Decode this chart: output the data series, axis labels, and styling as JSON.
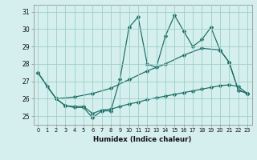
{
  "xlabel": "Humidex (Indice chaleur)",
  "bg_color": "#d4efee",
  "grid_color": "#9ececa",
  "line_color": "#1a6b63",
  "xlim": [
    -0.5,
    23.5
  ],
  "ylim": [
    24.5,
    31.4
  ],
  "yticks": [
    25,
    26,
    27,
    28,
    29,
    30,
    31
  ],
  "xticks": [
    0,
    1,
    2,
    3,
    4,
    5,
    6,
    7,
    8,
    9,
    10,
    11,
    12,
    13,
    14,
    15,
    16,
    17,
    18,
    19,
    20,
    21,
    22,
    23
  ],
  "line1_x": [
    0,
    1,
    2,
    3,
    4,
    5,
    6,
    7,
    8,
    9,
    10,
    11,
    12,
    13,
    14,
    15,
    16,
    17,
    18,
    19,
    20,
    21,
    22,
    23
  ],
  "line1_y": [
    27.5,
    26.7,
    26.0,
    25.6,
    25.5,
    25.5,
    24.9,
    25.3,
    25.3,
    27.1,
    30.1,
    30.7,
    28.0,
    27.8,
    29.6,
    30.8,
    29.9,
    29.0,
    29.4,
    30.1,
    28.8,
    28.1,
    26.5,
    26.3
  ],
  "line2_x": [
    0,
    2,
    4,
    6,
    8,
    10,
    12,
    14,
    16,
    18,
    20,
    21,
    22,
    23
  ],
  "line2_y": [
    27.5,
    26.0,
    26.1,
    26.3,
    26.6,
    27.1,
    27.6,
    28.0,
    28.5,
    28.9,
    28.8,
    28.1,
    26.5,
    26.3
  ],
  "line3_x": [
    2,
    3,
    4,
    5,
    6,
    7,
    8,
    9,
    10,
    11,
    12,
    13,
    14,
    15,
    16,
    17,
    18,
    19,
    20,
    21,
    22,
    23
  ],
  "line3_y": [
    26.0,
    25.6,
    25.55,
    25.55,
    25.15,
    25.35,
    25.4,
    25.55,
    25.7,
    25.8,
    25.95,
    26.05,
    26.15,
    26.25,
    26.35,
    26.45,
    26.55,
    26.65,
    26.75,
    26.8,
    26.7,
    26.3
  ]
}
